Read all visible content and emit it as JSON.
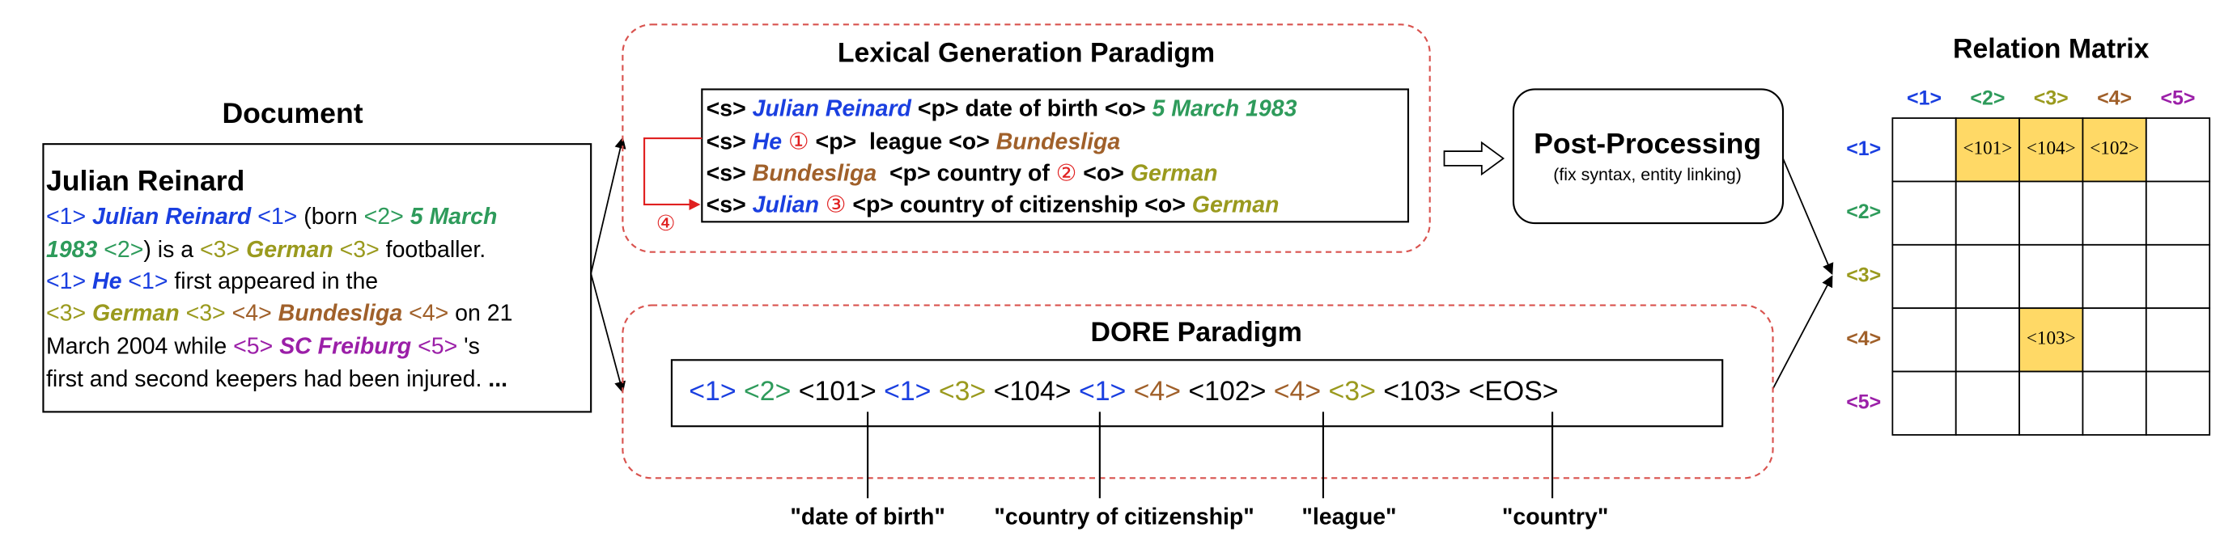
{
  "document": {
    "title": "Document",
    "heading": "Julian Reinard",
    "lines": [
      [
        "<1> ",
        "Julian Reinard",
        " <1>",
        " (born ",
        "<2> ",
        "5 March"
      ],
      [
        "1983",
        " <2>",
        ") is a ",
        "<3> ",
        "German",
        " <3>",
        " footballer."
      ],
      [
        "<1> ",
        "He",
        " <1>",
        " first appeared in the"
      ],
      [
        "<3> ",
        "German",
        " <3> ",
        "<4> ",
        "Bundesliga",
        " <4>",
        " on 21"
      ],
      [
        "March 2004 while ",
        "<5> ",
        "SC Freiburg",
        " <5>",
        " 's"
      ],
      [
        "first and second keepers had been injured. ",
        "..."
      ]
    ]
  },
  "lexical": {
    "title": "Lexical Generation Paradigm",
    "lines": [
      [
        "<s> ",
        "Julian Reinard",
        " <p> date of birth <o> ",
        "5 March 1983"
      ],
      [
        "<s> ",
        "He",
        " ①",
        " <p>  league <o> ",
        "Bundesliga"
      ],
      [
        "<s> ",
        "Bundesliga",
        "  <p> country of ",
        "②",
        " <o> ",
        "German"
      ],
      [
        "<s> ",
        "Julian",
        " ③",
        " <p> country of citizenship <o> ",
        "German"
      ]
    ],
    "loop_marker": "④"
  },
  "post_processing": {
    "title": "Post-Processing",
    "subtitle": "(fix syntax, entity linking)"
  },
  "dore": {
    "title": "DORE Paradigm",
    "tokens": [
      "<1>",
      "<2>",
      "<101>",
      "<1>",
      "<3>",
      "<104>",
      "<1>",
      "<4>",
      "<102>",
      "<4>",
      "<3>",
      "<103>",
      "<EOS>"
    ],
    "relation_labels": [
      "\"date of birth\"",
      "\"country of citizenship\"",
      "\"league\"",
      "\"country\""
    ]
  },
  "matrix": {
    "title": "Relation Matrix",
    "columns": [
      "<1>",
      "<2>",
      "<3>",
      "<4>",
      "<5>"
    ],
    "rows": [
      "<1>",
      "<2>",
      "<3>",
      "<4>",
      "<5>"
    ],
    "cells": [
      [
        null,
        "<101>",
        "<104>",
        "<102>",
        null
      ],
      [
        null,
        null,
        null,
        null,
        null
      ],
      [
        null,
        null,
        null,
        null,
        null
      ],
      [
        null,
        null,
        "<103>",
        null,
        null
      ],
      [
        null,
        null,
        null,
        null,
        null
      ]
    ]
  }
}
